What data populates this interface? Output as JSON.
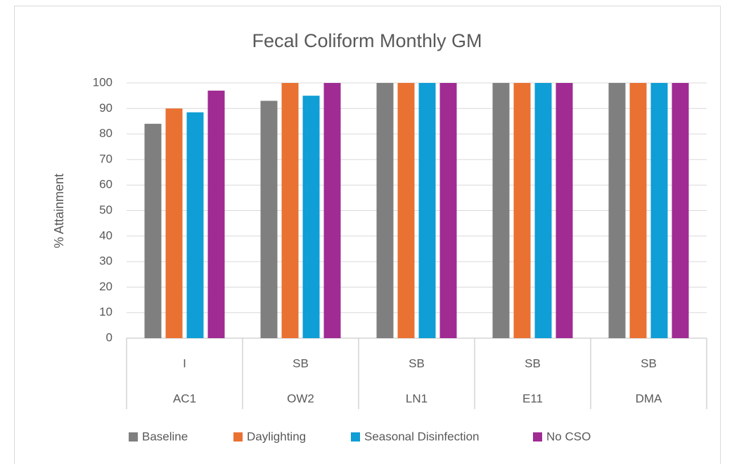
{
  "chart_data": {
    "type": "bar",
    "title": "Fecal Coliform Monthly GM",
    "y_label": "% Attainment",
    "subcategories": [
      "I",
      "SB",
      "SB",
      "SB",
      "SB"
    ],
    "categories": [
      "AC1",
      "OW2",
      "LN1",
      "E11",
      "DMA"
    ],
    "series": [
      {
        "name": "Baseline",
        "color": "#7f7f7f",
        "values": [
          84,
          93,
          100,
          100,
          100
        ]
      },
      {
        "name": "Daylighting",
        "color": "#e97132",
        "values": [
          90,
          100,
          100,
          100,
          100
        ]
      },
      {
        "name": "Seasonal Disinfection",
        "color": "#0f9ed5",
        "values": [
          88.5,
          95,
          100,
          100,
          100
        ]
      },
      {
        "name": "No CSO",
        "color": "#a02b93",
        "values": [
          97,
          100,
          100,
          100,
          100
        ]
      }
    ],
    "ylim": [
      0,
      100
    ],
    "yticks": [
      0,
      10,
      20,
      30,
      40,
      50,
      60,
      70,
      80,
      90,
      100
    ],
    "grid": true,
    "legend": "bottom"
  }
}
